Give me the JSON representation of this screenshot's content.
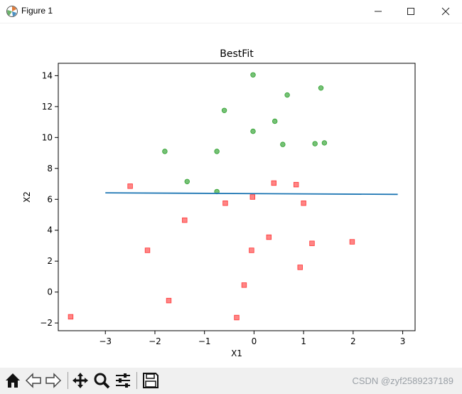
{
  "window": {
    "title": "Figure 1",
    "app_icon": "matplotlib-icon",
    "controls": [
      "minimize-icon",
      "maximize-icon",
      "close-icon"
    ]
  },
  "toolbar": {
    "buttons": [
      "home-icon",
      "back-icon",
      "forward-icon",
      "pan-icon",
      "zoom-icon",
      "configure-subplots-icon",
      "save-icon"
    ],
    "watermark": "CSDN @zyf2589237189"
  },
  "chart_data": {
    "type": "scatter",
    "title": "BestFit",
    "xlabel": "X1",
    "ylabel": "X2",
    "xlim": [
      -3.95,
      3.25
    ],
    "ylim": [
      -2.5,
      14.8
    ],
    "xticks": [
      -3,
      -2,
      -1,
      0,
      1,
      2,
      3
    ],
    "yticks": [
      -2,
      0,
      2,
      4,
      6,
      8,
      10,
      12,
      14
    ],
    "grid": false,
    "legend": "none",
    "series": [
      {
        "marker": "circle",
        "color": "#2ca02c",
        "points": [
          [
            -1.8,
            9.1
          ],
          [
            -1.35,
            7.15
          ],
          [
            -0.75,
            9.1
          ],
          [
            -0.75,
            6.5
          ],
          [
            -0.6,
            11.75
          ],
          [
            -0.02,
            10.4
          ],
          [
            -0.02,
            14.05
          ],
          [
            0.42,
            11.05
          ],
          [
            0.58,
            9.55
          ],
          [
            0.67,
            12.75
          ],
          [
            1.23,
            9.6
          ],
          [
            1.35,
            13.2
          ],
          [
            1.42,
            9.65
          ]
        ]
      },
      {
        "marker": "square",
        "color": "#ff3333",
        "points": [
          [
            -3.7,
            -1.6
          ],
          [
            -2.5,
            6.85
          ],
          [
            -2.15,
            2.7
          ],
          [
            -1.72,
            -0.55
          ],
          [
            -1.4,
            4.65
          ],
          [
            -0.58,
            5.75
          ],
          [
            -0.35,
            -1.65
          ],
          [
            -0.2,
            0.45
          ],
          [
            -0.05,
            2.7
          ],
          [
            -0.03,
            6.15
          ],
          [
            0.3,
            3.55
          ],
          [
            0.4,
            7.05
          ],
          [
            0.85,
            6.95
          ],
          [
            0.93,
            1.6
          ],
          [
            1.0,
            5.75
          ],
          [
            1.17,
            3.15
          ],
          [
            1.98,
            3.25
          ]
        ]
      }
    ],
    "line": {
      "color": "#1f77b4",
      "points": [
        [
          -3.0,
          6.42
        ],
        [
          2.9,
          6.32
        ]
      ]
    }
  }
}
